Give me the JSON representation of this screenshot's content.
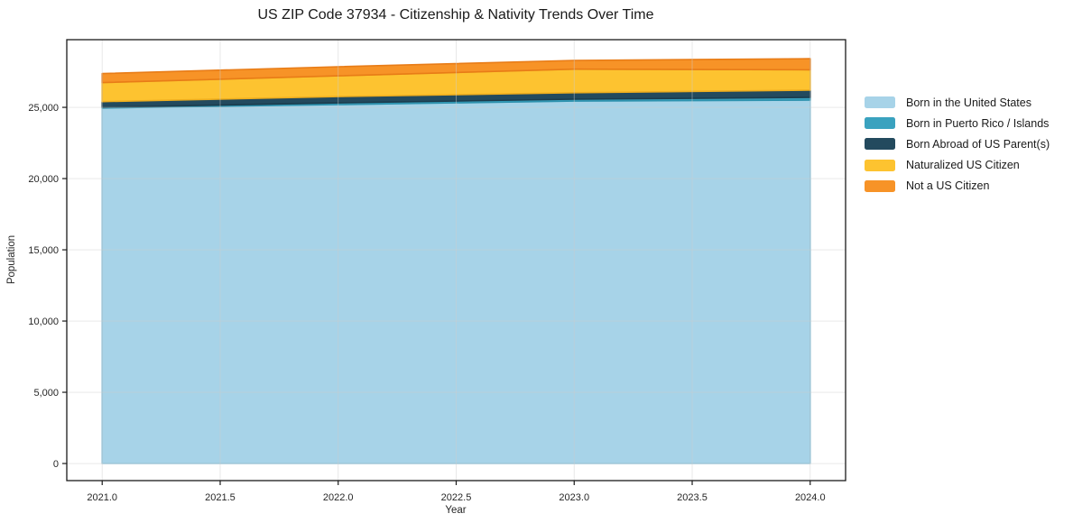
{
  "title": "US ZIP Code 37934 - Citizenship & Nativity Trends Over Time",
  "chart_data": {
    "type": "area",
    "stacked": true,
    "title": "US ZIP Code 37934 - Citizenship & Nativity Trends Over Time",
    "xlabel": "Year",
    "ylabel": "Population",
    "x": [
      2021,
      2022,
      2023,
      2024
    ],
    "series": [
      {
        "name": "Born in the United States",
        "color": "#a7d3e8",
        "edge": "#8ec5dd",
        "values": [
          24950,
          25190,
          25440,
          25510
        ]
      },
      {
        "name": "Born in Puerto Rico / Islands",
        "color": "#3aa2bf",
        "edge": "#2e92ae",
        "values": [
          60,
          125,
          130,
          190
        ]
      },
      {
        "name": "Born Abroad of US Parent(s)",
        "color": "#234a5e",
        "edge": "#1b3c4d",
        "values": [
          390,
          440,
          460,
          505
        ]
      },
      {
        "name": "Naturalized US Citizen",
        "color": "#fdc330",
        "edge": "#efae1e",
        "values": [
          1340,
          1460,
          1650,
          1430
        ]
      },
      {
        "name": "Not a US Citizen",
        "color": "#f79327",
        "edge": "#e87c17",
        "values": [
          630,
          635,
          615,
          780
        ]
      }
    ],
    "x_tick_labels": [
      "2021.0",
      "2021.5",
      "2022.0",
      "2022.5",
      "2023.0",
      "2023.5",
      "2024.0"
    ],
    "x_tick_values": [
      2021,
      2021.5,
      2022,
      2022.5,
      2023,
      2023.5,
      2024
    ],
    "y_tick_labels": [
      "0",
      "5,000",
      "10,000",
      "15,000",
      "20,000",
      "25,000"
    ],
    "y_tick_values": [
      0,
      5000,
      10000,
      15000,
      20000,
      25000
    ],
    "xlim": [
      2020.85,
      2024.15
    ],
    "ylim": [
      -1200,
      29750
    ],
    "grid": true,
    "legend_position": "right-outside"
  }
}
